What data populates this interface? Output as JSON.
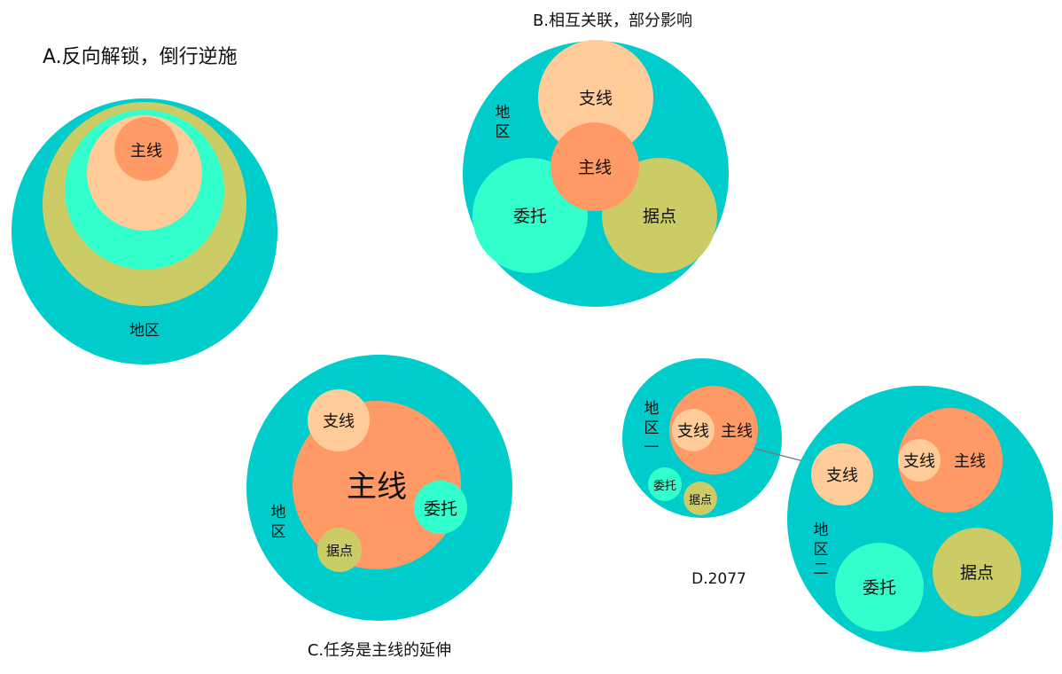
{
  "colors": {
    "region": "#00CCCC",
    "main_line": "#FF9966",
    "side_line": "#FFCC99",
    "commission": "#33FFCC",
    "stronghold": "#CCCC66",
    "arrow": "#777777"
  },
  "panel_a": {
    "title": "A.反向解锁，倒行逆施",
    "region": "地区",
    "main": "主线"
  },
  "panel_b": {
    "title": "B.相互关联，部分影响",
    "region": "地\n区",
    "side": "支线",
    "main": "主线",
    "commission": "委托",
    "stronghold": "据点"
  },
  "panel_c": {
    "title": "C.任务是主线的延伸",
    "region": "地\n区",
    "side": "支线",
    "main": "主线",
    "commission": "委托",
    "stronghold": "据点"
  },
  "panel_d": {
    "title": "D.2077",
    "region_one": {
      "label": "地\n区\n一",
      "side": "支线",
      "main": "主线",
      "commission": "委托",
      "stronghold": "据点"
    },
    "region_two": {
      "label": "地\n区\n二",
      "side": "支线",
      "main_side": "支线",
      "main": "主线",
      "commission": "委托",
      "stronghold": "据点"
    }
  }
}
